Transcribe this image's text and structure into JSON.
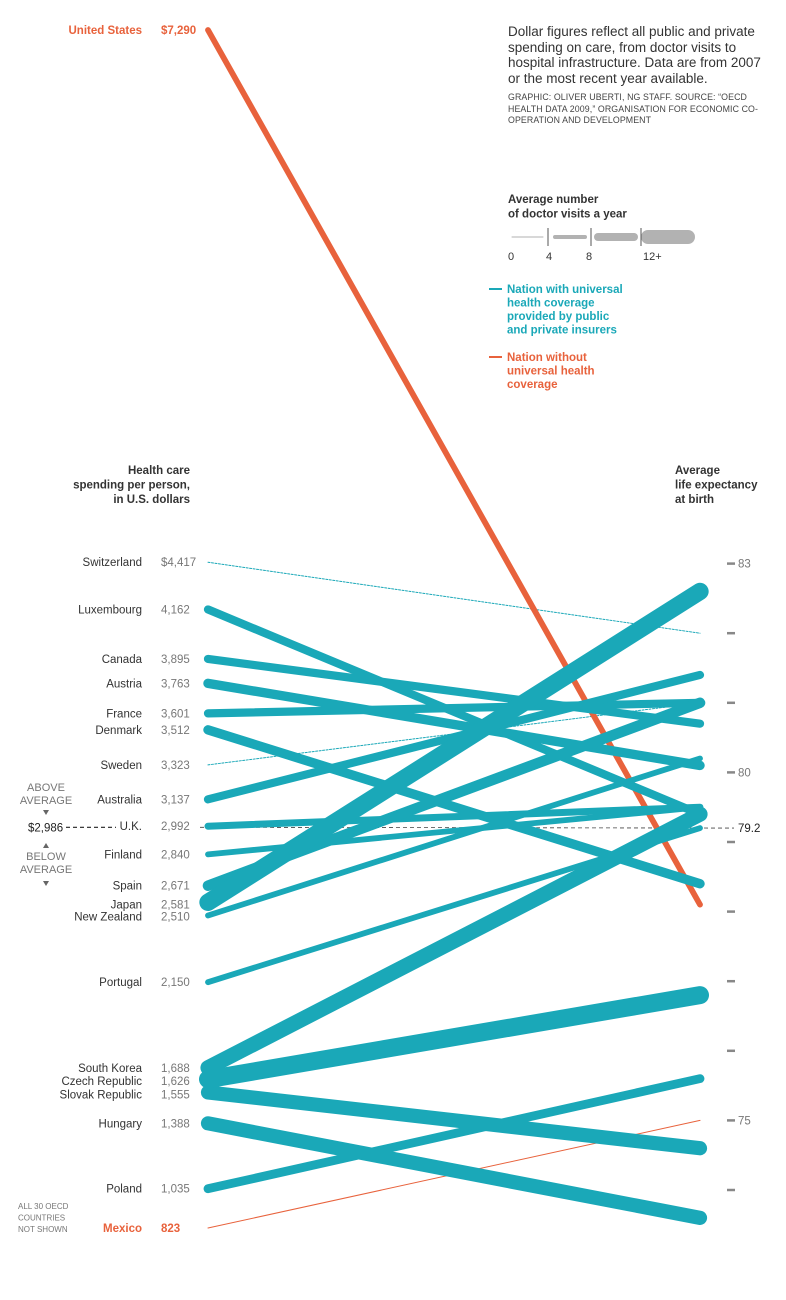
{
  "note": {
    "text": "Dollar figures reflect all public and private spending on care, from doctor visits to hospital infrastructure. Data are from 2007 or the most recent year available.",
    "credit": "GRAPHIC: OLIVER UBERTI, NG STAFF. SOURCE: “OECD HEALTH DATA 2009,” ORGANISATION FOR ECONOMIC CO-OPERATION AND DEVELOPMENT"
  },
  "chart_data": {
    "type": "slope",
    "left_axis_title": [
      "Health care",
      "spending per person,",
      "in U.S. dollars"
    ],
    "right_axis_title": [
      "Average",
      "life expectancy",
      "at birth"
    ],
    "left_range": [
      823,
      7290
    ],
    "right_range": [
      74,
      83
    ],
    "right_ticks": [
      83,
      82,
      81,
      80,
      79,
      78,
      77,
      76,
      75,
      74
    ],
    "right_tick_labels": [
      {
        "value": 83,
        "label": "83"
      },
      {
        "value": 80,
        "label": "80"
      },
      {
        "value": 75,
        "label": "75"
      }
    ],
    "average": {
      "spending": 2986,
      "spending_label": "$2,986",
      "life": 79.2,
      "life_label": "79.2"
    },
    "above_label": [
      "ABOVE",
      "AVERAGE"
    ],
    "below_label": [
      "BELOW",
      "AVERAGE"
    ],
    "footnote": [
      "ALL 30 OECD",
      "COUNTRIES",
      "NOT SHOWN"
    ],
    "legend": {
      "visits_title": [
        "Average number",
        "of doctor visits a year"
      ],
      "visits_ticks": [
        "0",
        "4",
        "8",
        "12+"
      ],
      "universal": [
        "Nation with universal",
        "health coverage",
        "provided by public",
        "and private insurers"
      ],
      "non_universal": [
        "Nation without",
        "universal health",
        "coverage"
      ]
    },
    "colors": {
      "universal": "#1aa8b8",
      "non_universal": "#e8623c",
      "text": "#333333",
      "muted": "#777777"
    },
    "series": [
      {
        "name": "United States",
        "spending": 7290,
        "spending_label": "$7,290",
        "life": 78.1,
        "visits": 4,
        "universal": false
      },
      {
        "name": "Switzerland",
        "spending": 4417,
        "spending_label": "$4,417",
        "life": 82.0,
        "visits": 1,
        "universal": true
      },
      {
        "name": "Luxembourg",
        "spending": 4162,
        "spending_label": "4,162",
        "life": 79.4,
        "visits": 6,
        "universal": true
      },
      {
        "name": "Canada",
        "spending": 3895,
        "spending_label": "3,895",
        "life": 80.7,
        "visits": 6,
        "universal": true
      },
      {
        "name": "Austria",
        "spending": 3763,
        "spending_label": "3,763",
        "life": 80.1,
        "visits": 7,
        "universal": true
      },
      {
        "name": "France",
        "spending": 3601,
        "spending_label": "3,601",
        "life": 81.0,
        "visits": 6,
        "universal": true
      },
      {
        "name": "Denmark",
        "spending": 3512,
        "spending_label": "3,512",
        "life": 78.4,
        "visits": 7,
        "universal": true
      },
      {
        "name": "Sweden",
        "spending": 3323,
        "spending_label": "3,323",
        "life": 81.0,
        "visits": 3,
        "universal": true
      },
      {
        "name": "Australia",
        "spending": 3137,
        "spending_label": "3,137",
        "life": 81.4,
        "visits": 6,
        "universal": true
      },
      {
        "name": "U.K.",
        "spending": 2992,
        "spending_label": "2,992",
        "life": 79.5,
        "visits": 5,
        "universal": true
      },
      {
        "name": "Finland",
        "spending": 2840,
        "spending_label": "2,840",
        "life": 79.5,
        "visits": 4,
        "universal": true
      },
      {
        "name": "Spain",
        "spending": 2671,
        "spending_label": "2,671",
        "life": 81.0,
        "visits": 8,
        "universal": true
      },
      {
        "name": "Japan",
        "spending": 2581,
        "spending_label": "2,581",
        "life": 82.6,
        "visits": 13.6,
        "universal": true
      },
      {
        "name": "New Zealand",
        "spending": 2510,
        "spending_label": "2,510",
        "life": 80.2,
        "visits": 4,
        "universal": true
      },
      {
        "name": "Portugal",
        "spending": 2150,
        "spending_label": "2,150",
        "life": 79.2,
        "visits": 4,
        "universal": true
      },
      {
        "name": "South Korea",
        "spending": 1688,
        "spending_label": "1,688",
        "life": 79.4,
        "visits": 11.8,
        "universal": true
      },
      {
        "name": "Czech Republic",
        "spending": 1626,
        "spending_label": "1,626",
        "life": 76.8,
        "visits": 15,
        "universal": true
      },
      {
        "name": "Slovak Republic",
        "spending": 1555,
        "spending_label": "1,555",
        "life": 74.6,
        "visits": 11,
        "universal": true
      },
      {
        "name": "Hungary",
        "spending": 1388,
        "spending_label": "1,388",
        "life": 73.6,
        "visits": 11,
        "universal": true
      },
      {
        "name": "Poland",
        "spending": 1035,
        "spending_label": "1,035",
        "life": 75.6,
        "visits": 6.5,
        "universal": true
      },
      {
        "name": "Mexico",
        "spending": 823,
        "spending_label": "823",
        "life": 75.0,
        "visits": 2,
        "universal": false
      }
    ]
  }
}
